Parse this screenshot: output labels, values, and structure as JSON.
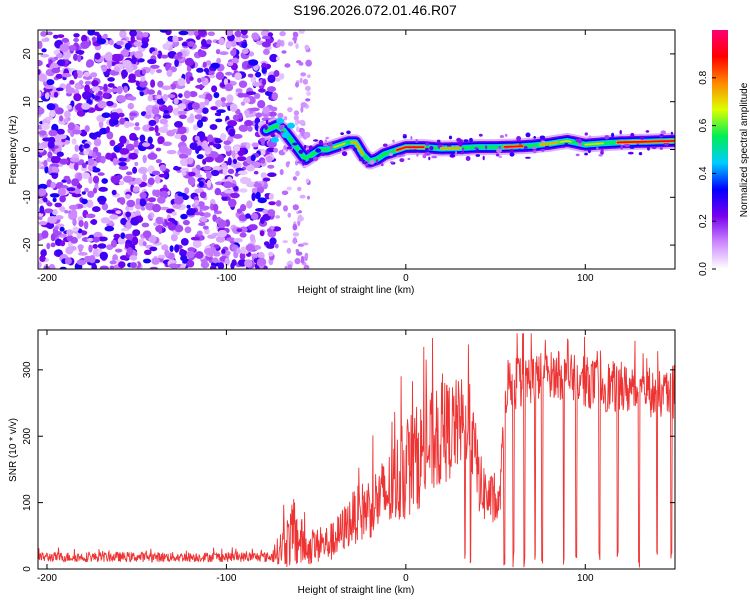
{
  "title": "S196.2026.072.01.46.R07",
  "chart_data": [
    {
      "type": "heatmap",
      "xlabel": "Height of straight line (km)",
      "ylabel": "Frequency (Hz)",
      "xlim": [
        -205,
        150
      ],
      "ylim": [
        -25,
        25
      ],
      "x_ticks": [
        -200,
        -100,
        0,
        100
      ],
      "y_ticks": [
        -20,
        -10,
        0,
        10,
        20
      ],
      "colorbar": {
        "label": "Normalized spectral amplitude",
        "range": [
          0,
          1
        ],
        "ticks": [
          "0.0",
          "0.2",
          "0.4",
          "0.6",
          "0.8"
        ],
        "tick_values": [
          0.0,
          0.2,
          0.4,
          0.6,
          0.8
        ],
        "colors": [
          "#ffffff",
          "#cc88ff",
          "#7700ee",
          "#0000ff",
          "#00ccff",
          "#00ee55",
          "#ddff00",
          "#ff8800",
          "#ff0000",
          "#ff0077"
        ]
      },
      "noise_region_x": [
        -205,
        -75
      ],
      "ridge": {
        "x": [
          -78,
          -72,
          -68,
          -64,
          -60,
          -56,
          -52,
          -48,
          -44,
          -40,
          -36,
          -32,
          -28,
          -24,
          -20,
          -16,
          -12,
          -8,
          -4,
          0,
          10,
          20,
          30,
          40,
          50,
          60,
          70,
          80,
          90,
          100,
          110,
          120,
          130,
          140,
          150
        ],
        "freq": [
          4,
          5,
          4,
          2,
          0,
          -2,
          -1,
          0,
          0,
          0.5,
          1,
          1.5,
          1.5,
          -1,
          -2.5,
          -2,
          -1,
          -0.5,
          0,
          0.5,
          0.5,
          0.2,
          0.3,
          0.5,
          0.5,
          0.6,
          0.8,
          1.2,
          1.8,
          1.0,
          1.3,
          1.5,
          1.6,
          1.7,
          1.8
        ]
      }
    },
    {
      "type": "line",
      "xlabel": "Height of straight line (km)",
      "ylabel": "SNR (10 * v/v)",
      "xlim": [
        -205,
        150
      ],
      "ylim": [
        0,
        360
      ],
      "x_ticks": [
        -200,
        -100,
        0,
        100
      ],
      "y_ticks": [
        0,
        100,
        200,
        300
      ],
      "color": "#ee3333",
      "envelope": [
        {
          "x": -205,
          "base": 15,
          "spread": 15
        },
        {
          "x": -75,
          "base": 15,
          "spread": 15
        },
        {
          "x": -62,
          "base": 30,
          "spread": 110
        },
        {
          "x": -55,
          "base": 20,
          "spread": 50
        },
        {
          "x": -40,
          "base": 30,
          "spread": 60
        },
        {
          "x": -30,
          "base": 60,
          "spread": 80
        },
        {
          "x": -10,
          "base": 90,
          "spread": 120
        },
        {
          "x": 0,
          "base": 120,
          "spread": 160
        },
        {
          "x": 20,
          "base": 170,
          "spread": 160
        },
        {
          "x": 35,
          "base": 200,
          "spread": 130
        },
        {
          "x": 42,
          "base": 100,
          "spread": 100
        },
        {
          "x": 52,
          "base": 80,
          "spread": 60
        },
        {
          "x": 56,
          "base": 260,
          "spread": 90
        },
        {
          "x": 80,
          "base": 280,
          "spread": 70
        },
        {
          "x": 110,
          "base": 260,
          "spread": 80
        },
        {
          "x": 150,
          "base": 245,
          "spread": 70
        }
      ],
      "dropouts_x": [
        33,
        36,
        55,
        60,
        66,
        72,
        76,
        88,
        95,
        108,
        118,
        130,
        140,
        148
      ]
    }
  ]
}
